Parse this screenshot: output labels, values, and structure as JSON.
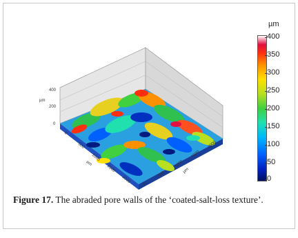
{
  "figure": {
    "caption_label": "Figure 17.",
    "caption_text": "The abraded pore walls of the ‘coated-salt-loss texture’."
  },
  "colorbar": {
    "unit": "µm",
    "ticks": [
      "400",
      "350",
      "300",
      "250",
      "200",
      "150",
      "100",
      "50",
      "0"
    ]
  },
  "axes": {
    "z_ticks": [
      "400",
      "200",
      "0"
    ],
    "z_unit": "µm",
    "x_ticks": [
      "0",
      "500",
      "1000",
      "1500",
      "2000"
    ],
    "x_unit": "µm",
    "y_ticks": [
      "0",
      "500",
      "1000",
      "1500",
      "2000"
    ],
    "y_unit": "µm"
  },
  "colors": {
    "low": "#0020c0",
    "mid": "#40d040",
    "high": "#ff3010"
  }
}
